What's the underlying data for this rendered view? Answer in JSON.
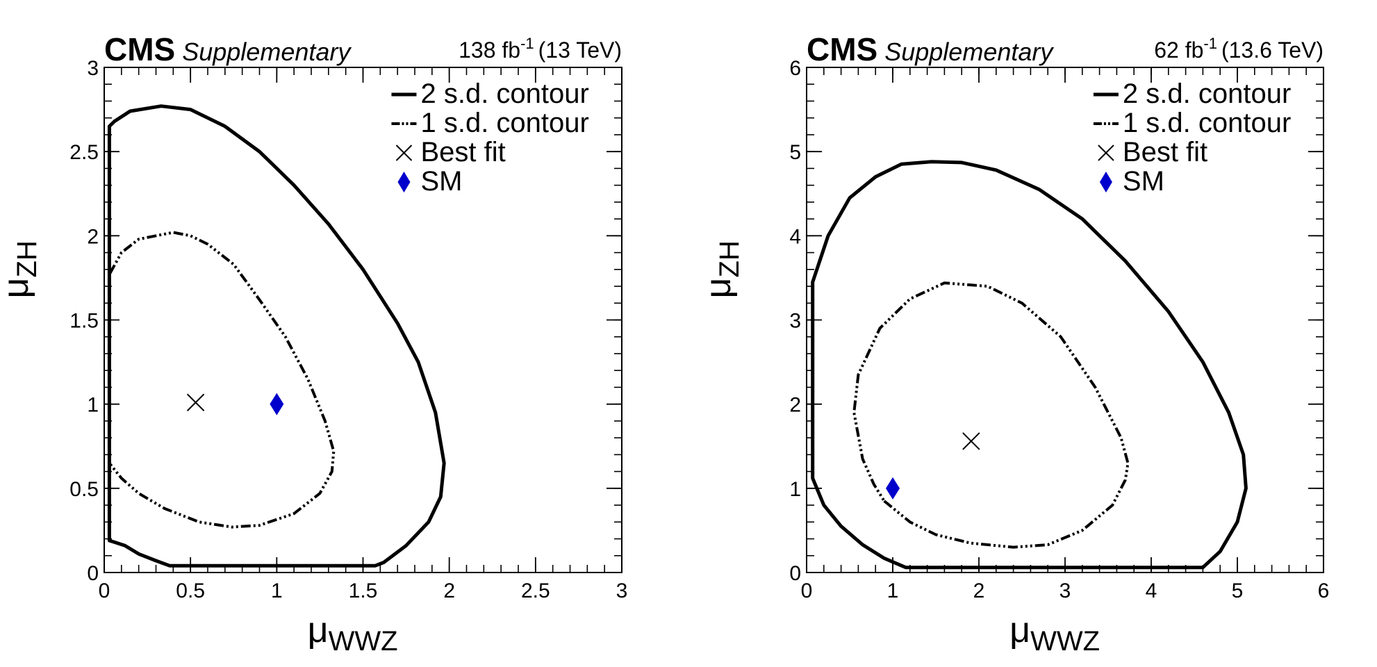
{
  "chart_data": [
    {
      "type": "contour",
      "experiment": "CMS",
      "label": "Supplementary",
      "lumi": {
        "value": "138 fb",
        "exp": "-1",
        "energy": "(13 TeV)"
      },
      "xlabel": {
        "main": "μ",
        "sub": "WWZ"
      },
      "ylabel": {
        "main": "μ",
        "sub": "ZH"
      },
      "xlim": [
        0,
        3
      ],
      "ylim": [
        0,
        3
      ],
      "xticks": [
        {
          "v": 0,
          "label": "0"
        },
        {
          "v": 0.5,
          "label": "0.5"
        },
        {
          "v": 1,
          "label": "1"
        },
        {
          "v": 1.5,
          "label": "1.5"
        },
        {
          "v": 2,
          "label": "2"
        },
        {
          "v": 2.5,
          "label": "2.5"
        },
        {
          "v": 3,
          "label": "3"
        }
      ],
      "yticks": [
        {
          "v": 0,
          "label": "0"
        },
        {
          "v": 0.5,
          "label": "0.5"
        },
        {
          "v": 1,
          "label": "1"
        },
        {
          "v": 1.5,
          "label": "1.5"
        },
        {
          "v": 2,
          "label": "2"
        },
        {
          "v": 2.5,
          "label": "2.5"
        },
        {
          "v": 3,
          "label": "3"
        }
      ],
      "minor_step": 0.1,
      "legend": [
        {
          "style": "solid",
          "text": "2 s.d. contour"
        },
        {
          "style": "dashdot",
          "text": "1 s.d. contour"
        },
        {
          "style": "cross",
          "text": "Best fit"
        },
        {
          "style": "diamond",
          "text": "SM"
        }
      ],
      "series": [
        {
          "style": "solid",
          "points": [
            [
              0.03,
              0.19
            ],
            [
              0.03,
              0.6
            ],
            [
              0.03,
              1.0
            ],
            [
              0.03,
              1.6
            ],
            [
              0.03,
              2.2
            ],
            [
              0.03,
              2.65
            ],
            [
              0.06,
              2.68
            ],
            [
              0.15,
              2.74
            ],
            [
              0.33,
              2.77
            ],
            [
              0.5,
              2.75
            ],
            [
              0.7,
              2.65
            ],
            [
              0.9,
              2.5
            ],
            [
              1.1,
              2.3
            ],
            [
              1.3,
              2.07
            ],
            [
              1.5,
              1.8
            ],
            [
              1.7,
              1.48
            ],
            [
              1.82,
              1.25
            ],
            [
              1.92,
              0.95
            ],
            [
              1.97,
              0.65
            ],
            [
              1.95,
              0.45
            ],
            [
              1.88,
              0.3
            ],
            [
              1.75,
              0.16
            ],
            [
              1.62,
              0.06
            ],
            [
              1.57,
              0.04
            ],
            [
              1.3,
              0.04
            ],
            [
              1.0,
              0.04
            ],
            [
              0.7,
              0.04
            ],
            [
              0.38,
              0.04
            ],
            [
              0.3,
              0.07
            ],
            [
              0.2,
              0.11
            ],
            [
              0.12,
              0.16
            ],
            [
              0.06,
              0.18
            ],
            [
              0.03,
              0.19
            ]
          ]
        },
        {
          "style": "dashdot",
          "points": [
            [
              0.03,
              0.65
            ],
            [
              0.03,
              1.0
            ],
            [
              0.03,
              1.4
            ],
            [
              0.03,
              1.77
            ],
            [
              0.1,
              1.9
            ],
            [
              0.2,
              1.98
            ],
            [
              0.4,
              2.02
            ],
            [
              0.5,
              2.0
            ],
            [
              0.6,
              1.95
            ],
            [
              0.75,
              1.83
            ],
            [
              0.9,
              1.62
            ],
            [
              1.05,
              1.4
            ],
            [
              1.18,
              1.15
            ],
            [
              1.28,
              0.9
            ],
            [
              1.33,
              0.72
            ],
            [
              1.32,
              0.6
            ],
            [
              1.25,
              0.47
            ],
            [
              1.1,
              0.35
            ],
            [
              0.9,
              0.28
            ],
            [
              0.74,
              0.27
            ],
            [
              0.55,
              0.3
            ],
            [
              0.35,
              0.38
            ],
            [
              0.2,
              0.47
            ],
            [
              0.1,
              0.56
            ],
            [
              0.03,
              0.65
            ]
          ]
        }
      ],
      "best_fit": [
        0.53,
        1.01
      ],
      "sm": [
        1.0,
        1.0
      ],
      "colors": {
        "sm": "#0000cc",
        "contour": "#000000"
      }
    },
    {
      "type": "contour",
      "experiment": "CMS",
      "label": "Supplementary",
      "lumi": {
        "value": "62 fb",
        "exp": "-1",
        "energy": "(13.6 TeV)"
      },
      "xlabel": {
        "main": "μ",
        "sub": "WWZ"
      },
      "ylabel": {
        "main": "μ",
        "sub": "ZH"
      },
      "xlim": [
        0,
        6
      ],
      "ylim": [
        0,
        6
      ],
      "xticks": [
        {
          "v": 0,
          "label": "0"
        },
        {
          "v": 1,
          "label": "1"
        },
        {
          "v": 2,
          "label": "2"
        },
        {
          "v": 3,
          "label": "3"
        },
        {
          "v": 4,
          "label": "4"
        },
        {
          "v": 5,
          "label": "5"
        },
        {
          "v": 6,
          "label": "6"
        }
      ],
      "yticks": [
        {
          "v": 0,
          "label": "0"
        },
        {
          "v": 1,
          "label": "1"
        },
        {
          "v": 2,
          "label": "2"
        },
        {
          "v": 3,
          "label": "3"
        },
        {
          "v": 4,
          "label": "4"
        },
        {
          "v": 5,
          "label": "5"
        },
        {
          "v": 6,
          "label": "6"
        }
      ],
      "minor_step": 0.2,
      "legend": [
        {
          "style": "solid",
          "text": "2 s.d. contour"
        },
        {
          "style": "dashdot",
          "text": "1 s.d. contour"
        },
        {
          "style": "cross",
          "text": "Best fit"
        },
        {
          "style": "diamond",
          "text": "SM"
        }
      ],
      "series": [
        {
          "style": "solid",
          "points": [
            [
              1.15,
              0.06
            ],
            [
              1.7,
              0.06
            ],
            [
              2.5,
              0.06
            ],
            [
              3.5,
              0.06
            ],
            [
              4.6,
              0.06
            ],
            [
              4.8,
              0.25
            ],
            [
              5.0,
              0.6
            ],
            [
              5.1,
              1.0
            ],
            [
              5.07,
              1.4
            ],
            [
              4.9,
              1.9
            ],
            [
              4.6,
              2.5
            ],
            [
              4.2,
              3.1
            ],
            [
              3.7,
              3.7
            ],
            [
              3.2,
              4.2
            ],
            [
              2.7,
              4.55
            ],
            [
              2.2,
              4.78
            ],
            [
              1.8,
              4.87
            ],
            [
              1.45,
              4.88
            ],
            [
              1.1,
              4.85
            ],
            [
              0.8,
              4.7
            ],
            [
              0.5,
              4.45
            ],
            [
              0.25,
              4.0
            ],
            [
              0.07,
              3.45
            ],
            [
              0.07,
              2.5
            ],
            [
              0.07,
              1.6
            ],
            [
              0.07,
              1.12
            ],
            [
              0.2,
              0.8
            ],
            [
              0.4,
              0.55
            ],
            [
              0.65,
              0.33
            ],
            [
              0.9,
              0.17
            ],
            [
              1.15,
              0.06
            ]
          ]
        },
        {
          "style": "dashdot",
          "points": [
            [
              0.9,
              0.85
            ],
            [
              1.2,
              0.6
            ],
            [
              1.5,
              0.45
            ],
            [
              1.9,
              0.35
            ],
            [
              2.4,
              0.3
            ],
            [
              2.8,
              0.33
            ],
            [
              3.2,
              0.5
            ],
            [
              3.55,
              0.8
            ],
            [
              3.7,
              1.1
            ],
            [
              3.73,
              1.3
            ],
            [
              3.65,
              1.6
            ],
            [
              3.35,
              2.2
            ],
            [
              2.95,
              2.8
            ],
            [
              2.5,
              3.2
            ],
            [
              2.1,
              3.4
            ],
            [
              1.6,
              3.44
            ],
            [
              1.2,
              3.25
            ],
            [
              0.85,
              2.9
            ],
            [
              0.6,
              2.35
            ],
            [
              0.55,
              1.9
            ],
            [
              0.65,
              1.35
            ],
            [
              0.78,
              1.05
            ],
            [
              0.9,
              0.85
            ]
          ]
        }
      ],
      "best_fit": [
        1.91,
        1.56
      ],
      "sm": [
        1.0,
        1.0
      ],
      "colors": {
        "sm": "#0000cc",
        "contour": "#000000"
      }
    }
  ]
}
